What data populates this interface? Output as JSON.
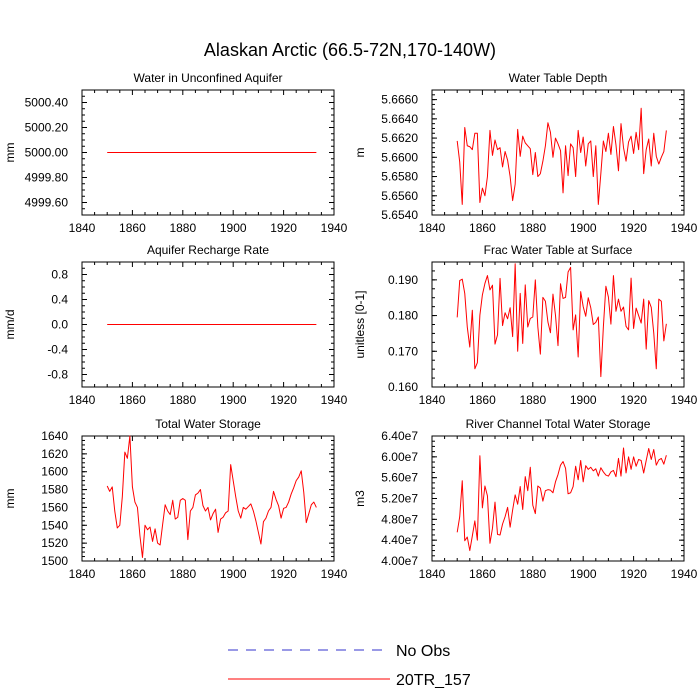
{
  "figure_title": "Alaskan Arctic (66.5-72N,170-140W)",
  "colors": {
    "obs": "#3333cc",
    "model": "#ff0000",
    "axis": "#000000"
  },
  "legend": [
    {
      "label": "No Obs",
      "style": "dashed",
      "color": "#3333cc"
    },
    {
      "label": "20TR_157",
      "style": "solid",
      "color": "#ff0000"
    }
  ],
  "chart_data": [
    {
      "type": "line",
      "title": "Water in Unconfined Aquifer",
      "xlabel": "",
      "ylabel": "mm",
      "xlim": [
        1840,
        1940
      ],
      "ylim": [
        4999.5,
        5000.5
      ],
      "xticks": [
        1840,
        1860,
        1880,
        1900,
        1920,
        1940
      ],
      "yticks": [
        4999.6,
        4999.8,
        5000.0,
        5000.2,
        5000.4
      ],
      "ytick_labels": [
        "4999.60",
        "4999.80",
        "5000.00",
        "5000.20",
        "5000.40"
      ],
      "series": [
        {
          "name": "20TR_157",
          "x_start": 1850,
          "x_step": 1,
          "values": [
            5000,
            5000,
            5000,
            5000,
            5000,
            5000,
            5000,
            5000,
            5000,
            5000,
            5000,
            5000,
            5000,
            5000,
            5000,
            5000,
            5000,
            5000,
            5000,
            5000,
            5000,
            5000,
            5000,
            5000,
            5000,
            5000,
            5000,
            5000,
            5000,
            5000,
            5000,
            5000,
            5000,
            5000,
            5000,
            5000,
            5000,
            5000,
            5000,
            5000,
            5000,
            5000,
            5000,
            5000,
            5000,
            5000,
            5000,
            5000,
            5000,
            5000,
            5000,
            5000,
            5000,
            5000,
            5000,
            5000,
            5000,
            5000,
            5000,
            5000,
            5000,
            5000,
            5000,
            5000,
            5000,
            5000,
            5000,
            5000,
            5000,
            5000,
            5000,
            5000,
            5000,
            5000,
            5000,
            5000,
            5000,
            5000,
            5000,
            5000,
            5000,
            5000,
            5000,
            5000
          ]
        }
      ]
    },
    {
      "type": "line",
      "title": "Water Table Depth",
      "xlabel": "",
      "ylabel": "m",
      "xlim": [
        1840,
        1940
      ],
      "ylim": [
        5.654,
        5.667
      ],
      "xticks": [
        1840,
        1860,
        1880,
        1900,
        1920,
        1940
      ],
      "yticks": [
        5.654,
        5.656,
        5.658,
        5.66,
        5.662,
        5.664,
        5.666
      ],
      "ytick_labels": [
        "5.6540",
        "5.6560",
        "5.6580",
        "5.6600",
        "5.6620",
        "5.6640",
        "5.6660"
      ],
      "series": [
        {
          "name": "20TR_157",
          "x_start": 1850,
          "x_step": 1,
          "values": [
            5.6617,
            5.6595,
            5.6551,
            5.6631,
            5.6612,
            5.6611,
            5.6608,
            5.6625,
            5.6625,
            5.6553,
            5.6568,
            5.656,
            5.658,
            5.6628,
            5.6602,
            5.6618,
            5.6608,
            5.661,
            5.659,
            5.6606,
            5.6597,
            5.658,
            5.6555,
            5.6572,
            5.6629,
            5.6601,
            5.6622,
            5.6615,
            5.6612,
            5.6609,
            5.6582,
            5.6605,
            5.658,
            5.6583,
            5.6596,
            5.6612,
            5.6636,
            5.6626,
            5.66,
            5.662,
            5.6614,
            5.6607,
            5.6563,
            5.6612,
            5.6581,
            5.6614,
            5.661,
            5.658,
            5.6628,
            5.6605,
            5.6621,
            5.6591,
            5.6614,
            5.6617,
            5.658,
            5.6612,
            5.6551,
            5.6583,
            5.6617,
            5.6606,
            5.6625,
            5.6603,
            5.6632,
            5.6613,
            5.6586,
            5.6635,
            5.661,
            5.6596,
            5.6616,
            5.6622,
            5.6604,
            5.6626,
            5.6608,
            5.6651,
            5.6583,
            5.6608,
            5.6619,
            5.6591,
            5.6625,
            5.6601,
            5.6593,
            5.66,
            5.6606,
            5.6628
          ]
        }
      ]
    },
    {
      "type": "line",
      "title": "Aquifer Recharge Rate",
      "xlabel": "",
      "ylabel": "mm/d",
      "xlim": [
        1840,
        1940
      ],
      "ylim": [
        -1,
        1
      ],
      "xticks": [
        1840,
        1860,
        1880,
        1900,
        1920,
        1940
      ],
      "yticks": [
        -0.8,
        -0.4,
        0.0,
        0.4,
        0.8
      ],
      "ytick_labels": [
        "-0.8",
        "-0.4",
        "0.0",
        "0.4",
        "0.8"
      ],
      "series": [
        {
          "name": "20TR_157",
          "x_start": 1850,
          "x_step": 1,
          "values": [
            0,
            0,
            0,
            0,
            0,
            0,
            0,
            0,
            0,
            0,
            0,
            0,
            0,
            0,
            0,
            0,
            0,
            0,
            0,
            0,
            0,
            0,
            0,
            0,
            0,
            0,
            0,
            0,
            0,
            0,
            0,
            0,
            0,
            0,
            0,
            0,
            0,
            0,
            0,
            0,
            0,
            0,
            0,
            0,
            0,
            0,
            0,
            0,
            0,
            0,
            0,
            0,
            0,
            0,
            0,
            0,
            0,
            0,
            0,
            0,
            0,
            0,
            0,
            0,
            0,
            0,
            0,
            0,
            0,
            0,
            0,
            0,
            0,
            0,
            0,
            0,
            0,
            0,
            0,
            0,
            0,
            0,
            0,
            0
          ]
        }
      ]
    },
    {
      "type": "line",
      "title": "Frac Water Table at Surface",
      "xlabel": "",
      "ylabel": "unitless [0-1]",
      "xlim": [
        1840,
        1940
      ],
      "ylim": [
        0.16,
        0.195
      ],
      "xticks": [
        1840,
        1860,
        1880,
        1900,
        1920,
        1940
      ],
      "yticks": [
        0.16,
        0.17,
        0.18,
        0.19
      ],
      "ytick_labels": [
        "0.160",
        "0.170",
        "0.180",
        "0.190"
      ],
      "series": [
        {
          "name": "20TR_157",
          "x_start": 1850,
          "x_step": 1,
          "values": [
            0.1795,
            0.1898,
            0.1902,
            0.1862,
            0.1768,
            0.1712,
            0.1815,
            0.1651,
            0.1668,
            0.1801,
            0.1858,
            0.189,
            0.1912,
            0.1872,
            0.1885,
            0.172,
            0.1746,
            0.1904,
            0.1772,
            0.1808,
            0.1791,
            0.1822,
            0.1741,
            0.1945,
            0.17,
            0.1862,
            0.1722,
            0.1886,
            0.1768,
            0.1792,
            0.1796,
            0.19,
            0.1768,
            0.1692,
            0.1851,
            0.184,
            0.1782,
            0.1752,
            0.186,
            0.1801,
            0.1716,
            0.1889,
            0.1848,
            0.1851,
            0.1922,
            0.1935,
            0.176,
            0.1802,
            0.1684,
            0.1867,
            0.1825,
            0.1798,
            0.185,
            0.1822,
            0.1775,
            0.1781,
            0.1796,
            0.1629,
            0.1768,
            0.1882,
            0.1852,
            0.1776,
            0.1912,
            0.1812,
            0.1846,
            0.1812,
            0.1824,
            0.177,
            0.176,
            0.1905,
            0.1764,
            0.1821,
            0.18,
            0.1779,
            0.1846,
            0.1706,
            0.1842,
            0.1823,
            0.1751,
            0.1651,
            0.1846,
            0.184,
            0.1729,
            0.1777
          ]
        }
      ]
    },
    {
      "type": "line",
      "title": "Total Water Storage",
      "xlabel": "",
      "ylabel": "mm",
      "xlim": [
        1840,
        1940
      ],
      "ylim": [
        1500,
        1640
      ],
      "xticks": [
        1840,
        1860,
        1880,
        1900,
        1920,
        1940
      ],
      "yticks": [
        1500,
        1520,
        1540,
        1560,
        1580,
        1600,
        1620,
        1640
      ],
      "ytick_labels": [
        "1500",
        "1520",
        "1540",
        "1560",
        "1580",
        "1600",
        "1620",
        "1640"
      ],
      "series": [
        {
          "name": "20TR_157",
          "x_start": 1850,
          "x_step": 1,
          "values": [
            1584,
            1578,
            1583,
            1556,
            1537,
            1540,
            1572,
            1622,
            1615,
            1640,
            1583,
            1566,
            1560,
            1528,
            1504,
            1540,
            1535,
            1538,
            1522,
            1536,
            1520,
            1518,
            1541,
            1563,
            1556,
            1552,
            1568,
            1547,
            1549,
            1568,
            1570,
            1568,
            1524,
            1556,
            1560,
            1574,
            1576,
            1580,
            1562,
            1556,
            1560,
            1546,
            1553,
            1558,
            1532,
            1547,
            1549,
            1554,
            1556,
            1608,
            1590,
            1572,
            1556,
            1548,
            1560,
            1558,
            1561,
            1564,
            1556,
            1545,
            1532,
            1519,
            1544,
            1548,
            1556,
            1560,
            1578,
            1569,
            1562,
            1548,
            1559,
            1560,
            1566,
            1575,
            1582,
            1590,
            1594,
            1601,
            1577,
            1543,
            1553,
            1563,
            1566,
            1560
          ]
        }
      ]
    },
    {
      "type": "line",
      "title": "River Channel Total Water Storage",
      "xlabel": "",
      "ylabel": "m3",
      "xlim": [
        1840,
        1940
      ],
      "ylim": [
        40000000,
        64000000
      ],
      "xticks": [
        1840,
        1860,
        1880,
        1900,
        1920,
        1940
      ],
      "yticks": [
        40000000,
        44000000,
        48000000,
        52000000,
        56000000,
        60000000,
        64000000
      ],
      "ytick_labels": [
        "4.00e7",
        "4.40e7",
        "4.80e7",
        "5.20e7",
        "5.60e7",
        "6.00e7",
        "6.40e7"
      ],
      "series": [
        {
          "name": "20TR_157",
          "x_start": 1850,
          "x_step": 1,
          "values": [
            45500000,
            48500000,
            55400000,
            43900000,
            44600000,
            42000000,
            44800000,
            47700000,
            44000000,
            60200000,
            50200000,
            54400000,
            52500000,
            43400000,
            46300000,
            51300000,
            45100000,
            45000000,
            47100000,
            48500000,
            50300000,
            46500000,
            49800000,
            52700000,
            50900000,
            54300000,
            49900000,
            56200000,
            53500000,
            58000000,
            50700000,
            49100000,
            54400000,
            54000000,
            51500000,
            53500000,
            53700000,
            53600000,
            53100000,
            55200000,
            56600000,
            58400000,
            59100000,
            57800000,
            52900000,
            53100000,
            54300000,
            58200000,
            55600000,
            59300000,
            55200000,
            58300000,
            57600000,
            58000000,
            57300000,
            57700000,
            56300000,
            57900000,
            57100000,
            56500000,
            56300000,
            57100000,
            57400000,
            56200000,
            59700000,
            56300000,
            61700000,
            56900000,
            60000000,
            57600000,
            60000000,
            58200000,
            59500000,
            59300000,
            56900000,
            59300000,
            61600000,
            59500000,
            61400000,
            58400000,
            59400000,
            59700000,
            58600000,
            60300000
          ]
        }
      ]
    }
  ]
}
